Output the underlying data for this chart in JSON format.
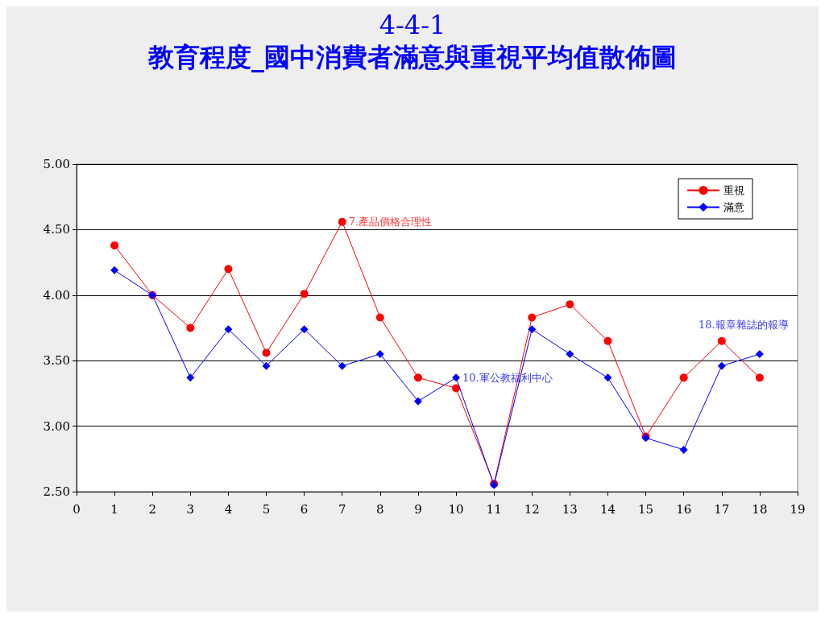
{
  "chart_data": {
    "type": "line",
    "title": "4-4-1",
    "subtitle": "教育程度_國中消費者滿意與重視平均值散佈圖",
    "x": [
      1,
      2,
      3,
      4,
      5,
      6,
      7,
      8,
      9,
      10,
      11,
      12,
      13,
      14,
      15,
      16,
      17,
      18
    ],
    "series": [
      {
        "name": "重視",
        "color": "#ff0000",
        "marker": "circle",
        "values": [
          4.38,
          4.0,
          3.75,
          4.2,
          3.56,
          4.01,
          4.56,
          3.83,
          3.37,
          3.29,
          2.56,
          3.83,
          3.93,
          3.65,
          2.92,
          3.37,
          3.65,
          3.37
        ]
      },
      {
        "name": "滿意",
        "color": "#0000ff",
        "marker": "diamond",
        "values": [
          4.19,
          4.0,
          3.37,
          3.74,
          3.46,
          3.74,
          3.46,
          3.55,
          3.19,
          3.37,
          2.55,
          3.74,
          3.55,
          3.37,
          2.91,
          2.82,
          3.46,
          3.55
        ]
      }
    ],
    "xlim": [
      0,
      19
    ],
    "xticks": [
      0,
      1,
      2,
      3,
      4,
      5,
      6,
      7,
      8,
      9,
      10,
      11,
      12,
      13,
      14,
      15,
      16,
      17,
      18,
      19
    ],
    "ylim": [
      2.5,
      5
    ],
    "yticks": [
      {
        "value": 2.5,
        "label": "2.50"
      },
      {
        "value": 3,
        "label": "3.00"
      },
      {
        "value": 3.5,
        "label": "3.50"
      },
      {
        "value": 4,
        "label": "4.00"
      },
      {
        "value": 4.5,
        "label": "4.50"
      },
      {
        "value": 5,
        "label": "5.00"
      }
    ],
    "annotations": [
      {
        "text": "7.產品價格合理性",
        "x": 7,
        "y": 4.56
      },
      {
        "text": "10.軍公教福利中心",
        "x": 10,
        "y": 3.37
      },
      {
        "text": "18.報章雜誌的報導",
        "x": 18,
        "y": 3.55
      }
    ],
    "grid": "y",
    "legend": "top right",
    "line_style": "solid"
  }
}
